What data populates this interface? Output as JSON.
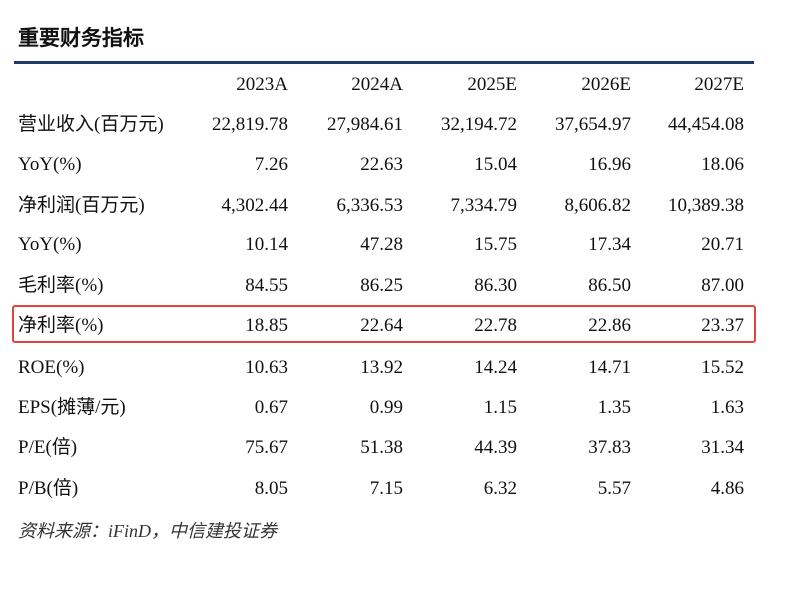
{
  "title": "重要财务指标",
  "table": {
    "header": [
      "2023A",
      "2024A",
      "2025E",
      "2026E",
      "2027E"
    ],
    "rows": [
      [
        "营业收入(百万元)",
        "22,819.78",
        "27,984.61",
        "32,194.72",
        "37,654.97",
        "44,454.08"
      ],
      [
        "YoY(%)",
        "7.26",
        "22.63",
        "15.04",
        "16.96",
        "18.06"
      ],
      [
        "净利润(百万元)",
        "4,302.44",
        "6,336.53",
        "7,334.79",
        "8,606.82",
        "10,389.38"
      ],
      [
        "YoY(%)",
        "10.14",
        "47.28",
        "15.75",
        "17.34",
        "20.71"
      ],
      [
        "毛利率(%)",
        "84.55",
        "86.25",
        "86.30",
        "86.50",
        "87.00"
      ],
      [
        "净利率(%)",
        "18.85",
        "22.64",
        "22.78",
        "22.86",
        "23.37"
      ],
      [
        "ROE(%)",
        "10.63",
        "13.92",
        "14.24",
        "14.71",
        "15.52"
      ],
      [
        "EPS(摊薄/元)",
        "0.67",
        "0.99",
        "1.15",
        "1.35",
        "1.63"
      ],
      [
        "P/E(倍)",
        "75.67",
        "51.38",
        "44.39",
        "37.83",
        "31.34"
      ],
      [
        "P/B(倍)",
        "8.05",
        "7.15",
        "6.32",
        "5.57",
        "4.86"
      ]
    ]
  },
  "source": "资料来源：iFinD，中信建投证券"
}
